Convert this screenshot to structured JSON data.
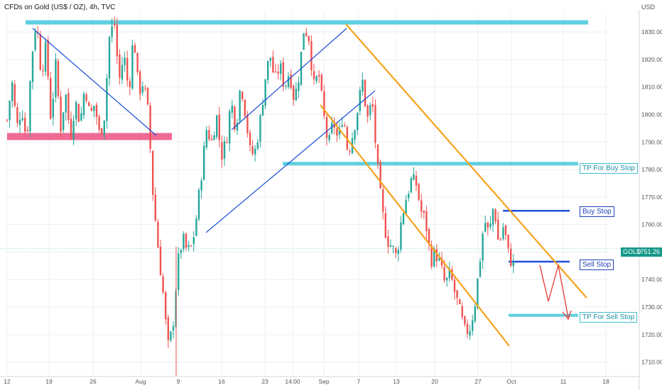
{
  "header": {
    "title": "CFDs on Gold (US$ / OZ), 4h, TVC",
    "unit": "USD"
  },
  "price_tag": {
    "symbol": "GOLD",
    "value": "1751.26"
  },
  "annotations": {
    "tp_buy": "TP For Buy Stop",
    "buy_stop": "Buy Stop",
    "sell_stop": "Sell Stop",
    "tp_sell": "TP For Sell Stop"
  },
  "colors": {
    "up": "#26a69a",
    "down": "#ef5350",
    "zone": "#5ecfe0",
    "support": "#f06b94",
    "trend_blue": "#1d4fd8",
    "channel": "#f5a21b",
    "arrow": "#e53935",
    "grid": "#eceff4"
  },
  "chart_data": {
    "type": "candlestick",
    "title": "CFDs on Gold (US$ / OZ), 4h, TVC",
    "ylim": [
      1705,
      1837
    ],
    "y_ticks": [
      1710,
      1720,
      1730,
      1740,
      1750,
      1760,
      1770,
      1780,
      1790,
      1800,
      1810,
      1820,
      1830
    ],
    "x_ticks": [
      "12",
      "19",
      "26",
      "Aug",
      "9",
      "16",
      "23",
      "14:00",
      "Sep",
      "7",
      "13",
      "20",
      "27",
      "Oct",
      "11",
      "18"
    ],
    "current_price": 1751.26,
    "levels": {
      "resistance_zone": 1833.5,
      "support_zone": 1792,
      "tp_buy_stop": 1782,
      "buy_stop": 1765,
      "sell_stop": 1746.5,
      "tp_sell_stop": 1727
    },
    "path": [
      1798,
      1812,
      1795,
      1803,
      1790,
      1820,
      1835,
      1815,
      1825,
      1798,
      1818,
      1795,
      1808,
      1792,
      1805,
      1797,
      1811,
      1799,
      1804,
      1792,
      1800,
      1828,
      1834,
      1812,
      1822,
      1808,
      1830,
      1808,
      1812,
      1800,
      1770,
      1752,
      1736,
      1715,
      1722,
      1745,
      1755,
      1750,
      1752,
      1764,
      1780,
      1795,
      1790,
      1800,
      1785,
      1790,
      1805,
      1795,
      1812,
      1800,
      1785,
      1787,
      1798,
      1813,
      1822,
      1812,
      1818,
      1810,
      1816,
      1805,
      1815,
      1832,
      1828,
      1810,
      1815,
      1800,
      1788,
      1798,
      1790,
      1801,
      1786,
      1793,
      1802,
      1812,
      1798,
      1805,
      1782,
      1765,
      1755,
      1752,
      1748,
      1762,
      1770,
      1776,
      1775,
      1765,
      1761,
      1747,
      1750,
      1745,
      1738,
      1742,
      1735,
      1728,
      1721,
      1722,
      1730,
      1745,
      1762,
      1756,
      1768,
      1752,
      1760,
      1749,
      1745
    ]
  }
}
